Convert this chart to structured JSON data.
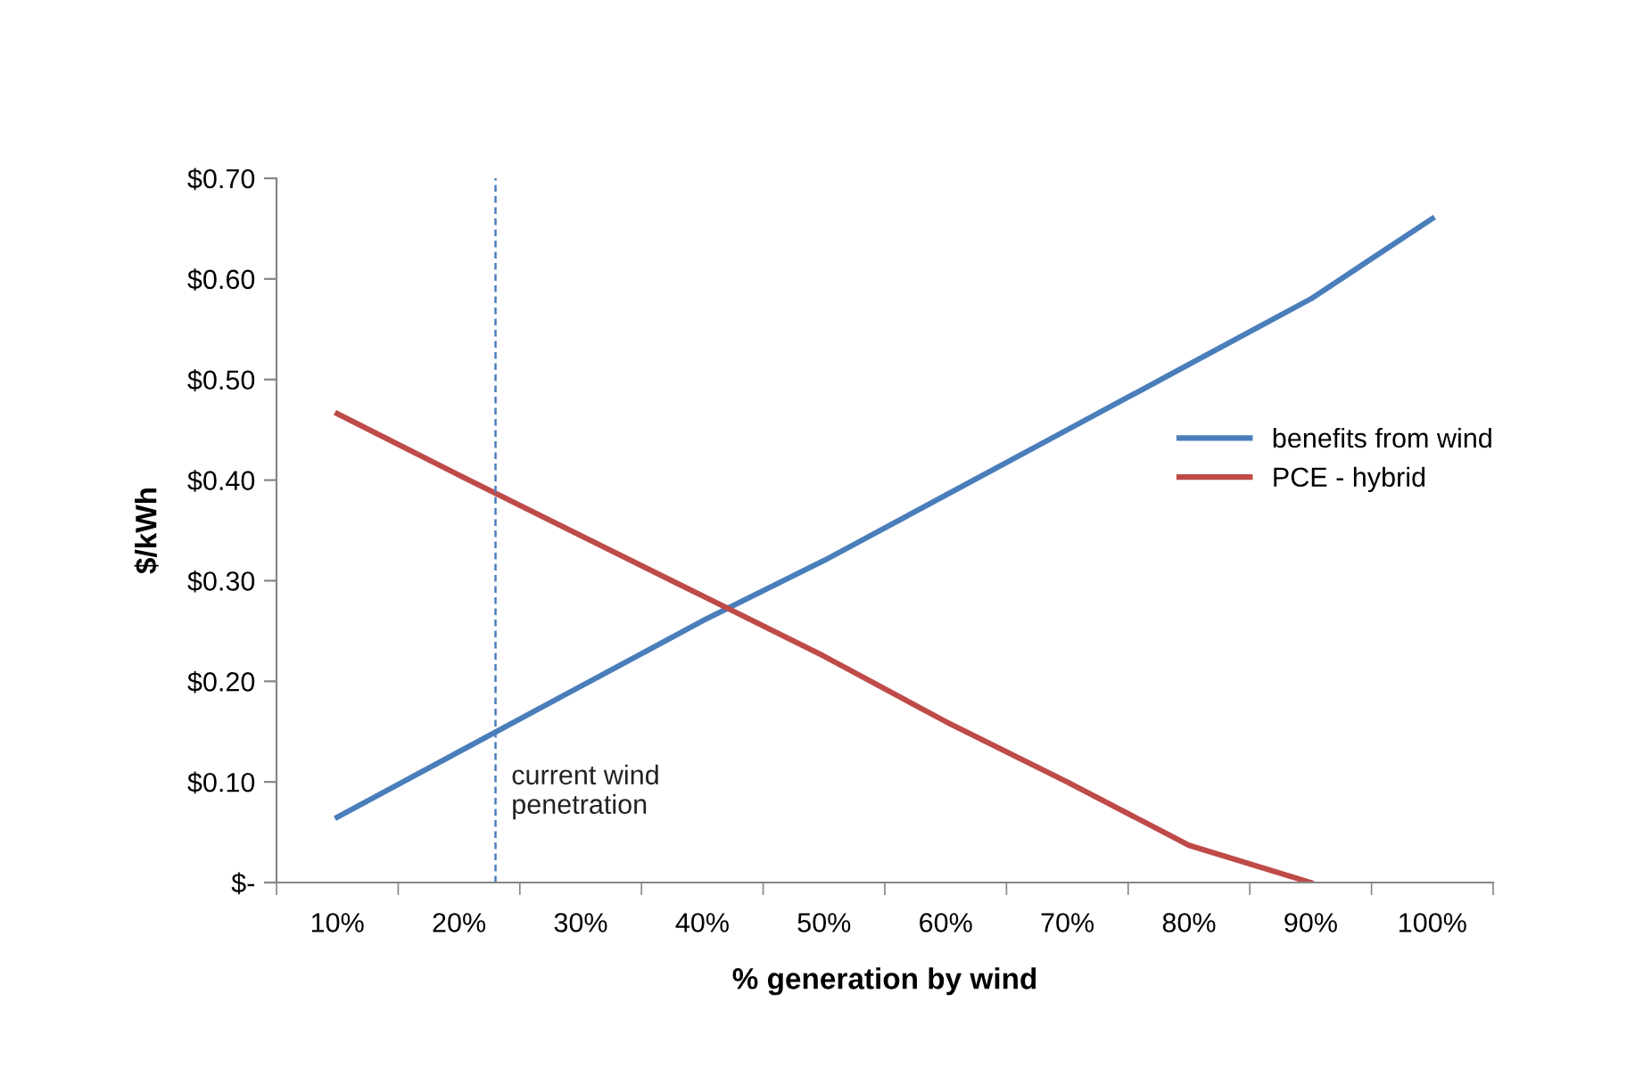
{
  "chart_data": {
    "type": "line",
    "xlabel": "% generation by wind",
    "ylabel": "$/kWh",
    "x": [
      10,
      20,
      30,
      40,
      50,
      60,
      70,
      80,
      90,
      100
    ],
    "series": [
      {
        "name": "benefits from wind",
        "color": "#4a7ebb",
        "values": [
          0.065,
          0.13,
          0.195,
          0.26,
          0.32,
          0.385,
          0.45,
          0.515,
          0.58,
          0.66
        ]
      },
      {
        "name": "PCE - hybrid",
        "color": "#be4b48",
        "x": [
          10,
          20,
          30,
          40,
          50,
          60,
          70,
          80,
          90
        ],
        "values": [
          0.466,
          0.405,
          0.345,
          0.285,
          0.225,
          0.16,
          0.1,
          0.037,
          0
        ]
      }
    ],
    "xlim": [
      5,
      105
    ],
    "xticks": [
      {
        "value": 10,
        "label": "10%"
      },
      {
        "value": 20,
        "label": "20%"
      },
      {
        "value": 30,
        "label": "30%"
      },
      {
        "value": 40,
        "label": "40%"
      },
      {
        "value": 50,
        "label": "50%"
      },
      {
        "value": 60,
        "label": "60%"
      },
      {
        "value": 70,
        "label": "70%"
      },
      {
        "value": 80,
        "label": "80%"
      },
      {
        "value": 90,
        "label": "90%"
      },
      {
        "value": 100,
        "label": "100%"
      },
      {
        "value": 5,
        "label": null
      },
      {
        "value": 15,
        "label": null
      },
      {
        "value": 25,
        "label": null
      },
      {
        "value": 35,
        "label": null
      },
      {
        "value": 45,
        "label": null
      },
      {
        "value": 55,
        "label": null
      },
      {
        "value": 65,
        "label": null
      },
      {
        "value": 75,
        "label": null
      },
      {
        "value": 85,
        "label": null
      },
      {
        "value": 95,
        "label": null
      },
      {
        "value": 105,
        "label": null
      }
    ],
    "ylim": [
      0,
      0.7
    ],
    "yticks": [
      {
        "value": 0,
        "label": "$-"
      },
      {
        "value": 0.1,
        "label": "$0.10"
      },
      {
        "value": 0.2,
        "label": "$0.20"
      },
      {
        "value": 0.3,
        "label": "$0.30"
      },
      {
        "value": 0.4,
        "label": "$0.40"
      },
      {
        "value": 0.5,
        "label": "$0.50"
      },
      {
        "value": 0.6,
        "label": "$0.60"
      },
      {
        "value": 0.7,
        "label": "$0.70"
      }
    ],
    "ref_lines": [
      {
        "axis": "x",
        "value": 23,
        "label": "current wind\npenetration",
        "color": "#4a7ebb",
        "line_style": "dashed"
      }
    ],
    "grid": false,
    "legend": "right",
    "marker": "none",
    "line_style": "solid"
  }
}
